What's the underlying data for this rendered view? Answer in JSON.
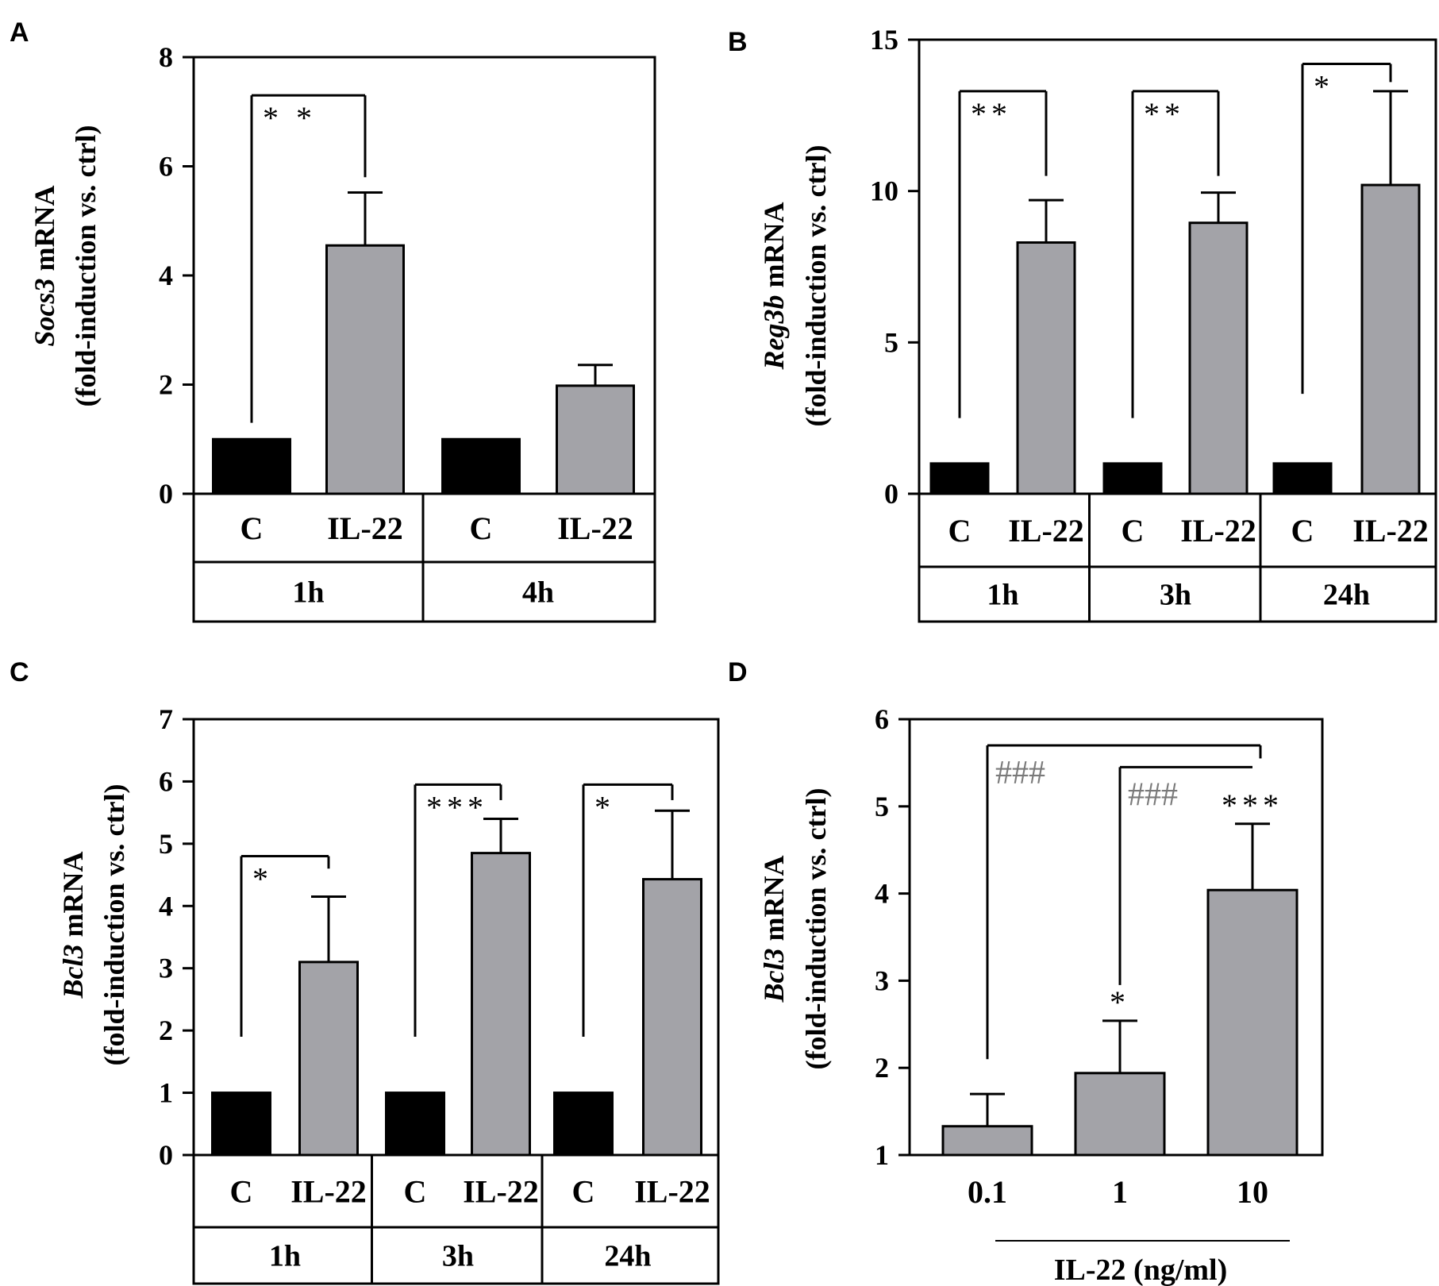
{
  "colors": {
    "control": "#000000",
    "treated": "#a3a3a8",
    "hash": "#7a7a7a"
  },
  "chart_data": [
    {
      "panel": "A",
      "type": "bar",
      "ylabel_gene": "Socs3",
      "ylabel_rest": " mRNA",
      "ylabel_line2": "(fold-induction vs. ctrl)",
      "ylim": [
        0,
        8
      ],
      "yticks": [
        0,
        2,
        4,
        6,
        8
      ],
      "bars": [
        {
          "label": "C",
          "value": 1.0,
          "err": 0,
          "kind": "control"
        },
        {
          "label": "IL-22",
          "value": 4.55,
          "err": 0.97,
          "kind": "treated"
        },
        {
          "label": "C",
          "value": 1.0,
          "err": 0,
          "kind": "control"
        },
        {
          "label": "IL-22",
          "value": 1.98,
          "err": 0.38,
          "kind": "treated"
        }
      ],
      "groups": [
        {
          "label": "1h",
          "bars": [
            0,
            1
          ]
        },
        {
          "label": "4h",
          "bars": [
            2,
            3
          ]
        }
      ],
      "annotations": [
        {
          "text": "* *",
          "from": 0,
          "to": 1,
          "level": 7.3,
          "drop_from": 1.3,
          "drop_to": 5.8
        }
      ]
    },
    {
      "panel": "B",
      "type": "bar",
      "ylabel_gene": "Reg3b",
      "ylabel_rest": " mRNA",
      "ylabel_line2": "(fold-induction vs. ctrl)",
      "ylim": [
        0,
        15
      ],
      "yticks": [
        0,
        5,
        10,
        15
      ],
      "bars": [
        {
          "label": "C",
          "value": 1.0,
          "err": 0,
          "kind": "control"
        },
        {
          "label": "IL-22",
          "value": 8.3,
          "err": 1.4,
          "kind": "treated"
        },
        {
          "label": "C",
          "value": 1.0,
          "err": 0,
          "kind": "control"
        },
        {
          "label": "IL-22",
          "value": 8.95,
          "err": 1.0,
          "kind": "treated"
        },
        {
          "label": "C",
          "value": 1.0,
          "err": 0,
          "kind": "control"
        },
        {
          "label": "IL-22",
          "value": 10.2,
          "err": 3.1,
          "kind": "treated"
        }
      ],
      "groups": [
        {
          "label": "1h",
          "bars": [
            0,
            1
          ]
        },
        {
          "label": "3h",
          "bars": [
            2,
            3
          ]
        },
        {
          "label": "24h",
          "bars": [
            4,
            5
          ]
        }
      ],
      "annotations": [
        {
          "text": "**",
          "from": 0,
          "to": 1,
          "level": 13.3,
          "drop_from": 2.5,
          "drop_to": 10.5
        },
        {
          "text": "**",
          "from": 2,
          "to": 3,
          "level": 13.3,
          "drop_from": 2.5,
          "drop_to": 10.5
        },
        {
          "text": "*",
          "from": 4,
          "to": 5,
          "level": 14.2,
          "drop_from": 3.3,
          "drop_to": 13.6
        }
      ]
    },
    {
      "panel": "C",
      "type": "bar",
      "ylabel_gene": "Bcl3",
      "ylabel_rest": " mRNA",
      "ylabel_line2": "(fold-induction vs. ctrl)",
      "ylim": [
        0,
        7
      ],
      "yticks": [
        0,
        1,
        2,
        3,
        4,
        5,
        6,
        7
      ],
      "bars": [
        {
          "label": "C",
          "value": 1.0,
          "err": 0,
          "kind": "control"
        },
        {
          "label": "IL-22",
          "value": 3.1,
          "err": 1.05,
          "kind": "treated"
        },
        {
          "label": "C",
          "value": 1.0,
          "err": 0,
          "kind": "control"
        },
        {
          "label": "IL-22",
          "value": 4.85,
          "err": 0.55,
          "kind": "treated"
        },
        {
          "label": "C",
          "value": 1.0,
          "err": 0,
          "kind": "control"
        },
        {
          "label": "IL-22",
          "value": 4.43,
          "err": 1.1,
          "kind": "treated"
        }
      ],
      "groups": [
        {
          "label": "1h",
          "bars": [
            0,
            1
          ]
        },
        {
          "label": "3h",
          "bars": [
            2,
            3
          ]
        },
        {
          "label": "24h",
          "bars": [
            4,
            5
          ]
        }
      ],
      "annotations": [
        {
          "text": "*",
          "from": 0,
          "to": 1,
          "level": 4.8,
          "drop_from": 1.9,
          "drop_to": 4.6
        },
        {
          "text": "***",
          "from": 2,
          "to": 3,
          "level": 5.95,
          "drop_from": 1.9,
          "drop_to": 5.7
        },
        {
          "text": "*",
          "from": 4,
          "to": 5,
          "level": 5.95,
          "drop_from": 1.9,
          "drop_to": 5.7
        }
      ]
    },
    {
      "panel": "D",
      "type": "bar",
      "ylabel_gene": "Bcl3",
      "ylabel_rest": " mRNA",
      "ylabel_line2": "(fold-induction vs. ctrl)",
      "ylim": [
        1,
        6
      ],
      "yticks": [
        1,
        2,
        3,
        4,
        5,
        6
      ],
      "xlabel": "IL-22 (ng/ml)",
      "bars": [
        {
          "label": "0.1",
          "value": 1.33,
          "err": 0.37,
          "kind": "treated"
        },
        {
          "label": "1",
          "value": 1.94,
          "err": 0.6,
          "kind": "treated"
        },
        {
          "label": "10",
          "value": 4.04,
          "err": 0.76,
          "kind": "treated"
        }
      ],
      "brackets": [
        {
          "from": 0,
          "to": 2,
          "level": 5.7,
          "drop_from": 2.1,
          "drop_to": 5.55
        },
        {
          "from": 1,
          "to": 2,
          "level": 5.45,
          "drop_from": 2.95,
          "drop_to": 5.45
        }
      ],
      "hash_labels": [
        "###",
        "###"
      ],
      "star_labels": [
        {
          "text": "*",
          "bar": 1
        },
        {
          "text": "***",
          "bar": 2
        }
      ]
    }
  ]
}
